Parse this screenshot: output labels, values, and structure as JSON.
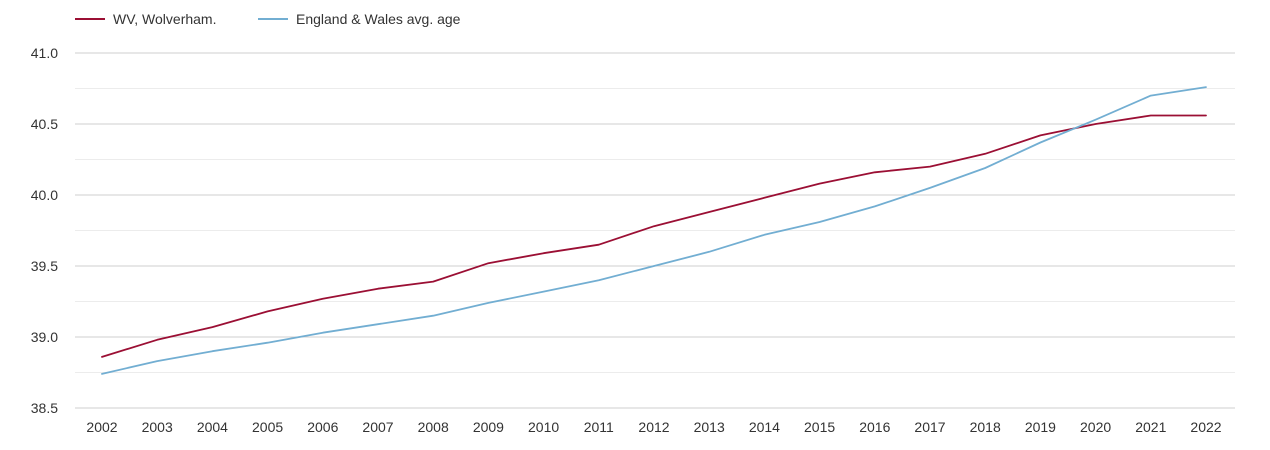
{
  "chart_data": {
    "type": "line",
    "title": "",
    "xlabel": "",
    "ylabel": "",
    "x": [
      "2002",
      "2003",
      "2004",
      "2005",
      "2006",
      "2007",
      "2008",
      "2009",
      "2010",
      "2011",
      "2012",
      "2013",
      "2014",
      "2015",
      "2016",
      "2017",
      "2018",
      "2019",
      "2020",
      "2021",
      "2022"
    ],
    "ylim": [
      38.5,
      41.0
    ],
    "yticks": [
      "38.5",
      "39.0",
      "39.5",
      "40.0",
      "40.5",
      "41.0"
    ],
    "grid": true,
    "legend_position": "top-left",
    "series": [
      {
        "name": "WV, Wolverham.",
        "color": "#9b0f34",
        "values": [
          38.86,
          38.98,
          39.07,
          39.18,
          39.27,
          39.34,
          39.39,
          39.52,
          39.59,
          39.65,
          39.78,
          39.88,
          39.98,
          40.08,
          40.16,
          40.2,
          40.29,
          40.42,
          40.5,
          40.56,
          40.56
        ]
      },
      {
        "name": "England & Wales avg. age",
        "color": "#72aed2",
        "values": [
          38.74,
          38.83,
          38.9,
          38.96,
          39.03,
          39.09,
          39.15,
          39.24,
          39.32,
          39.4,
          39.5,
          39.6,
          39.72,
          39.81,
          39.92,
          40.05,
          40.19,
          40.37,
          40.53,
          40.7,
          40.76
        ]
      }
    ]
  }
}
